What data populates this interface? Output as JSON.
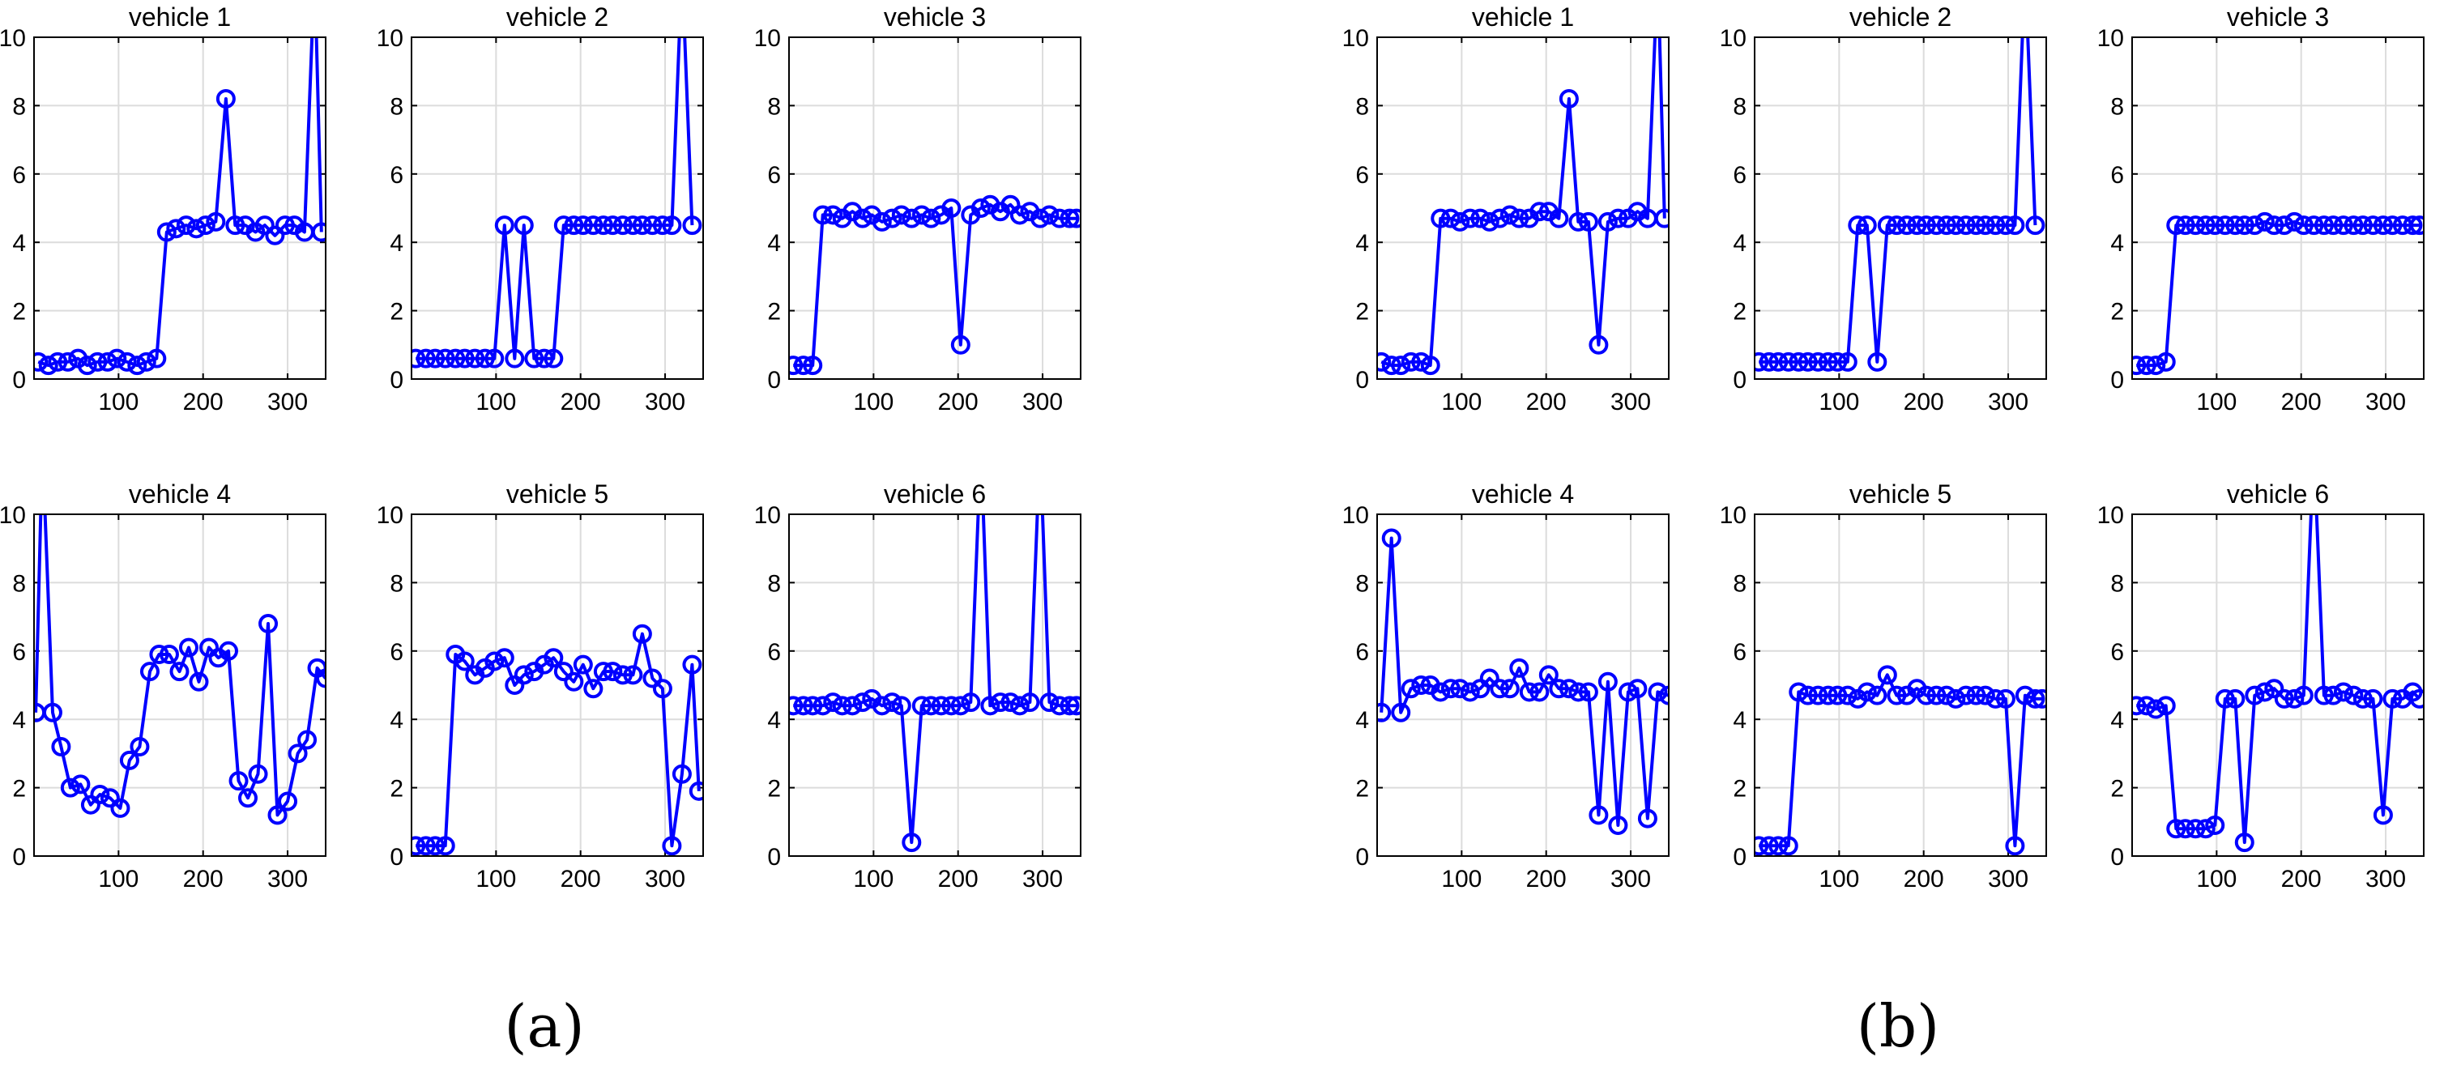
{
  "figure": {
    "panel_a_label": "(a)",
    "panel_b_label": "(b)",
    "line_color": "#0000ff",
    "grid_color": "#dcdcdc"
  },
  "chart_data": [
    {
      "group": "a",
      "title": "vehicle 1",
      "type": "line",
      "ylim": [
        0,
        10
      ],
      "xlim": [
        0,
        345
      ],
      "xticks": [
        100,
        200,
        300
      ],
      "yticks": [
        0,
        2,
        4,
        6,
        8,
        10
      ],
      "grid": true,
      "x": [
        5,
        17,
        28,
        40,
        52,
        63,
        75,
        87,
        98,
        110,
        122,
        133,
        145,
        157,
        168,
        180,
        192,
        203,
        215,
        227,
        238,
        250,
        262,
        273,
        285,
        297,
        308,
        320,
        332,
        340
      ],
      "y": [
        0.5,
        0.4,
        0.5,
        0.5,
        0.6,
        0.4,
        0.5,
        0.5,
        0.6,
        0.5,
        0.4,
        0.5,
        0.6,
        4.3,
        4.4,
        4.5,
        4.4,
        4.5,
        4.6,
        8.2,
        4.5,
        4.5,
        4.3,
        4.5,
        4.2,
        4.5,
        4.5,
        4.3,
        12,
        4.3
      ]
    },
    {
      "group": "a",
      "title": "vehicle 2",
      "type": "line",
      "ylim": [
        0,
        10
      ],
      "xlim": [
        0,
        345
      ],
      "xticks": [
        100,
        200,
        300
      ],
      "yticks": [
        0,
        2,
        4,
        6,
        8,
        10
      ],
      "grid": true,
      "x": [
        5,
        17,
        28,
        40,
        52,
        63,
        75,
        87,
        98,
        110,
        122,
        133,
        145,
        157,
        168,
        180,
        192,
        203,
        215,
        227,
        238,
        250,
        262,
        273,
        285,
        297,
        308,
        320,
        332
      ],
      "y": [
        0.6,
        0.6,
        0.6,
        0.6,
        0.6,
        0.6,
        0.6,
        0.6,
        0.6,
        4.5,
        0.6,
        4.5,
        0.6,
        0.6,
        0.6,
        4.5,
        4.5,
        4.5,
        4.5,
        4.5,
        4.5,
        4.5,
        4.5,
        4.5,
        4.5,
        4.5,
        4.5,
        12,
        4.5
      ]
    },
    {
      "group": "a",
      "title": "vehicle 3",
      "type": "line",
      "ylim": [
        0,
        10
      ],
      "xlim": [
        0,
        345
      ],
      "xticks": [
        100,
        200,
        300
      ],
      "yticks": [
        0,
        2,
        4,
        6,
        8,
        10
      ],
      "grid": true,
      "x": [
        5,
        17,
        28,
        40,
        52,
        63,
        75,
        87,
        98,
        110,
        122,
        133,
        145,
        157,
        168,
        180,
        192,
        203,
        215,
        227,
        238,
        250,
        262,
        273,
        285,
        297,
        308,
        320,
        332,
        340
      ],
      "y": [
        0.4,
        0.4,
        0.4,
        4.8,
        4.8,
        4.7,
        4.9,
        4.7,
        4.8,
        4.6,
        4.7,
        4.8,
        4.7,
        4.8,
        4.7,
        4.8,
        5.0,
        1.0,
        4.8,
        5.0,
        5.1,
        4.9,
        5.1,
        4.8,
        4.9,
        4.7,
        4.8,
        4.7,
        4.7,
        4.7
      ]
    },
    {
      "group": "a",
      "title": "vehicle 4",
      "type": "line",
      "ylim": [
        0,
        10
      ],
      "xlim": [
        0,
        345
      ],
      "xticks": [
        100,
        200,
        300
      ],
      "yticks": [
        0,
        2,
        4,
        6,
        8,
        10
      ],
      "grid": true,
      "x": [
        2,
        10,
        22,
        32,
        43,
        55,
        67,
        78,
        90,
        102,
        113,
        125,
        137,
        148,
        160,
        172,
        183,
        195,
        207,
        218,
        230,
        242,
        253,
        265,
        277,
        288,
        300,
        312,
        323,
        335,
        345
      ],
      "y": [
        4.2,
        12,
        4.2,
        3.2,
        2.0,
        2.1,
        1.5,
        1.8,
        1.7,
        1.4,
        2.8,
        3.2,
        5.4,
        5.9,
        5.9,
        5.4,
        6.1,
        5.1,
        6.1,
        5.8,
        6.0,
        2.2,
        1.7,
        2.4,
        6.8,
        1.2,
        1.6,
        3.0,
        3.4,
        5.5,
        5.2
      ]
    },
    {
      "group": "a",
      "title": "vehicle 5",
      "type": "line",
      "ylim": [
        0,
        10
      ],
      "xlim": [
        0,
        345
      ],
      "xticks": [
        100,
        200,
        300
      ],
      "yticks": [
        0,
        2,
        4,
        6,
        8,
        10
      ],
      "grid": true,
      "x": [
        5,
        17,
        28,
        40,
        52,
        63,
        75,
        87,
        98,
        110,
        122,
        133,
        145,
        157,
        168,
        180,
        192,
        203,
        215,
        227,
        238,
        250,
        262,
        273,
        285,
        297,
        308,
        320,
        332,
        340
      ],
      "y": [
        0.3,
        0.3,
        0.3,
        0.3,
        5.9,
        5.7,
        5.3,
        5.5,
        5.7,
        5.8,
        5.0,
        5.3,
        5.4,
        5.6,
        5.8,
        5.4,
        5.1,
        5.6,
        4.9,
        5.4,
        5.4,
        5.3,
        5.3,
        6.5,
        5.2,
        4.9,
        0.3,
        2.4,
        5.6,
        1.9
      ]
    },
    {
      "group": "a",
      "title": "vehicle 6",
      "type": "line",
      "ylim": [
        0,
        10
      ],
      "xlim": [
        0,
        345
      ],
      "xticks": [
        100,
        200,
        300
      ],
      "yticks": [
        0,
        2,
        4,
        6,
        8,
        10
      ],
      "grid": true,
      "x": [
        5,
        17,
        28,
        40,
        52,
        63,
        75,
        87,
        98,
        110,
        122,
        133,
        145,
        157,
        168,
        180,
        192,
        203,
        215,
        227,
        238,
        250,
        262,
        273,
        285,
        297,
        308,
        320,
        332,
        340
      ],
      "y": [
        4.4,
        4.4,
        4.4,
        4.4,
        4.5,
        4.4,
        4.4,
        4.5,
        4.6,
        4.4,
        4.5,
        4.4,
        0.4,
        4.4,
        4.4,
        4.4,
        4.4,
        4.4,
        4.5,
        12,
        4.4,
        4.5,
        4.5,
        4.4,
        4.5,
        12,
        4.5,
        4.4,
        4.4,
        4.4
      ]
    },
    {
      "group": "b",
      "title": "vehicle 1",
      "type": "line",
      "ylim": [
        0,
        10
      ],
      "xlim": [
        0,
        345
      ],
      "xticks": [
        100,
        200,
        300
      ],
      "yticks": [
        0,
        2,
        4,
        6,
        8,
        10
      ],
      "grid": true,
      "x": [
        5,
        17,
        28,
        40,
        52,
        63,
        75,
        87,
        98,
        110,
        122,
        133,
        145,
        157,
        168,
        180,
        192,
        203,
        215,
        227,
        238,
        250,
        262,
        273,
        285,
        297,
        308,
        320,
        332,
        340
      ],
      "y": [
        0.5,
        0.4,
        0.4,
        0.5,
        0.5,
        0.4,
        4.7,
        4.7,
        4.6,
        4.7,
        4.7,
        4.6,
        4.7,
        4.8,
        4.7,
        4.7,
        4.9,
        4.9,
        4.7,
        8.2,
        4.6,
        4.6,
        1.0,
        4.6,
        4.7,
        4.7,
        4.9,
        4.7,
        12,
        4.7
      ]
    },
    {
      "group": "b",
      "title": "vehicle 2",
      "type": "line",
      "ylim": [
        0,
        10
      ],
      "xlim": [
        0,
        345
      ],
      "xticks": [
        100,
        200,
        300
      ],
      "yticks": [
        0,
        2,
        4,
        6,
        8,
        10
      ],
      "grid": true,
      "x": [
        5,
        17,
        28,
        40,
        52,
        63,
        75,
        87,
        98,
        110,
        122,
        133,
        145,
        157,
        168,
        180,
        192,
        203,
        215,
        227,
        238,
        250,
        262,
        273,
        285,
        297,
        308,
        320,
        332
      ],
      "y": [
        0.5,
        0.5,
        0.5,
        0.5,
        0.5,
        0.5,
        0.5,
        0.5,
        0.5,
        0.5,
        4.5,
        4.5,
        0.5,
        4.5,
        4.5,
        4.5,
        4.5,
        4.5,
        4.5,
        4.5,
        4.5,
        4.5,
        4.5,
        4.5,
        4.5,
        4.5,
        4.5,
        12,
        4.5
      ]
    },
    {
      "group": "b",
      "title": "vehicle 3",
      "type": "line",
      "ylim": [
        0,
        10
      ],
      "xlim": [
        0,
        345
      ],
      "xticks": [
        100,
        200,
        300
      ],
      "yticks": [
        0,
        2,
        4,
        6,
        8,
        10
      ],
      "grid": true,
      "x": [
        5,
        17,
        28,
        40,
        52,
        63,
        75,
        87,
        98,
        110,
        122,
        133,
        145,
        157,
        168,
        180,
        192,
        203,
        215,
        227,
        238,
        250,
        262,
        273,
        285,
        297,
        308,
        320,
        332,
        340
      ],
      "y": [
        0.4,
        0.4,
        0.4,
        0.5,
        4.5,
        4.5,
        4.5,
        4.5,
        4.5,
        4.5,
        4.5,
        4.5,
        4.5,
        4.6,
        4.5,
        4.5,
        4.6,
        4.5,
        4.5,
        4.5,
        4.5,
        4.5,
        4.5,
        4.5,
        4.5,
        4.5,
        4.5,
        4.5,
        4.5,
        4.5
      ]
    },
    {
      "group": "b",
      "title": "vehicle 4",
      "type": "line",
      "ylim": [
        0,
        10
      ],
      "xlim": [
        0,
        345
      ],
      "xticks": [
        100,
        200,
        300
      ],
      "yticks": [
        0,
        2,
        4,
        6,
        8,
        10
      ],
      "grid": true,
      "x": [
        5,
        17,
        28,
        40,
        52,
        63,
        75,
        87,
        98,
        110,
        122,
        133,
        145,
        157,
        168,
        180,
        192,
        203,
        215,
        227,
        238,
        250,
        262,
        273,
        285,
        297,
        308,
        320,
        332,
        345
      ],
      "y": [
        4.2,
        9.3,
        4.2,
        4.9,
        5.0,
        5.0,
        4.8,
        4.9,
        4.9,
        4.8,
        4.9,
        5.2,
        4.9,
        4.9,
        5.5,
        4.8,
        4.8,
        5.3,
        4.9,
        4.9,
        4.8,
        4.8,
        1.2,
        5.1,
        0.9,
        4.8,
        4.9,
        1.1,
        4.8,
        4.7
      ]
    },
    {
      "group": "b",
      "title": "vehicle 5",
      "type": "line",
      "ylim": [
        0,
        10
      ],
      "xlim": [
        0,
        345
      ],
      "xticks": [
        100,
        200,
        300
      ],
      "yticks": [
        0,
        2,
        4,
        6,
        8,
        10
      ],
      "grid": true,
      "x": [
        5,
        17,
        28,
        40,
        52,
        63,
        75,
        87,
        98,
        110,
        122,
        133,
        145,
        157,
        168,
        180,
        192,
        203,
        215,
        227,
        238,
        250,
        262,
        273,
        285,
        297,
        308,
        320,
        332,
        340
      ],
      "y": [
        0.3,
        0.3,
        0.3,
        0.3,
        4.8,
        4.7,
        4.7,
        4.7,
        4.7,
        4.7,
        4.6,
        4.8,
        4.7,
        5.3,
        4.7,
        4.7,
        4.9,
        4.7,
        4.7,
        4.7,
        4.6,
        4.7,
        4.7,
        4.7,
        4.6,
        4.6,
        0.3,
        4.7,
        4.6,
        4.6
      ]
    },
    {
      "group": "b",
      "title": "vehicle 6",
      "type": "line",
      "ylim": [
        0,
        10
      ],
      "xlim": [
        0,
        345
      ],
      "xticks": [
        100,
        200,
        300
      ],
      "yticks": [
        0,
        2,
        4,
        6,
        8,
        10
      ],
      "grid": true,
      "x": [
        5,
        17,
        28,
        40,
        52,
        63,
        75,
        87,
        98,
        110,
        122,
        133,
        145,
        157,
        168,
        180,
        192,
        203,
        215,
        227,
        238,
        250,
        262,
        273,
        285,
        297,
        308,
        320,
        332,
        340
      ],
      "y": [
        4.4,
        4.4,
        4.3,
        4.4,
        0.8,
        0.8,
        0.8,
        0.8,
        0.9,
        4.6,
        4.6,
        0.4,
        4.7,
        4.8,
        4.9,
        4.6,
        4.6,
        4.7,
        12,
        4.7,
        4.7,
        4.8,
        4.7,
        4.6,
        4.6,
        1.2,
        4.6,
        4.6,
        4.8,
        4.6
      ]
    }
  ]
}
